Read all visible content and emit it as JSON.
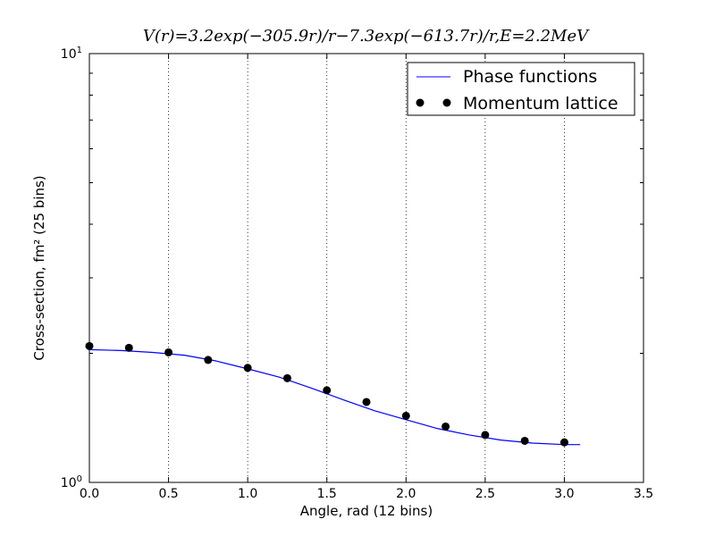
{
  "chart_data": {
    "type": "line",
    "title": "V(r)=3.2exp(−305.9r)/r−7.3exp(−613.7r)/r,E=2.2MeV",
    "xlabel": "Angle, rad (12 bins)",
    "ylabel": "Cross-section, fm² (25 bins)",
    "xlim": [
      0.0,
      3.5
    ],
    "ylim": [
      1,
      10
    ],
    "yscale": "log",
    "x_ticks": [
      0.0,
      0.5,
      1.0,
      1.5,
      2.0,
      2.5,
      3.0,
      3.5
    ],
    "x_tick_labels": [
      "0.0",
      "0.5",
      "1.0",
      "1.5",
      "2.0",
      "2.5",
      "3.0",
      "3.5"
    ],
    "y_tick_labels": [
      {
        "value": 1,
        "base": "10",
        "exp": "0"
      },
      {
        "value": 10,
        "base": "10",
        "exp": "1"
      }
    ],
    "grid": "x-major-dotted",
    "legend_position": "top-right",
    "series": [
      {
        "name": "Phase functions",
        "style": "line",
        "color": "#0000ff",
        "x": [
          0.0,
          0.2,
          0.4,
          0.6,
          0.8,
          1.0,
          1.2,
          1.4,
          1.6,
          1.8,
          2.0,
          2.2,
          2.4,
          2.6,
          2.8,
          3.0,
          3.1
        ],
        "y": [
          2.04,
          2.03,
          2.01,
          1.98,
          1.92,
          1.84,
          1.76,
          1.66,
          1.56,
          1.47,
          1.4,
          1.335,
          1.29,
          1.255,
          1.235,
          1.225,
          1.225
        ]
      },
      {
        "name": "Momentum lattice",
        "style": "markers",
        "color": "#000000",
        "x": [
          0.0,
          0.25,
          0.5,
          0.75,
          1.0,
          1.25,
          1.5,
          1.75,
          2.0,
          2.25,
          2.5,
          2.75,
          3.0
        ],
        "y": [
          2.08,
          2.06,
          2.01,
          1.93,
          1.85,
          1.75,
          1.64,
          1.54,
          1.43,
          1.35,
          1.29,
          1.25,
          1.24
        ]
      }
    ]
  }
}
